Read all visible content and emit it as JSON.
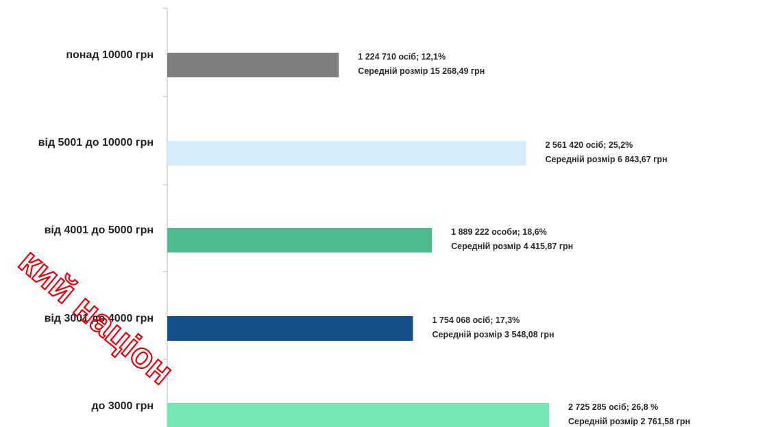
{
  "chart_data": {
    "type": "bar",
    "orientation": "horizontal",
    "categories": [
      "понад 10000 грн",
      "від 5001 до 10000 грн",
      "від 4001 до 5000 грн",
      "від 3001 до 4000 грн",
      "до 3000 грн"
    ],
    "values": [
      1224710,
      2561420,
      1889222,
      1754068,
      2725285
    ],
    "bar_colors": [
      "#7f7f7f",
      "#d6ecfa",
      "#4fba8e",
      "#164f8a",
      "#74e8b2"
    ],
    "data_labels": [
      {
        "line1": "1 224 710 осіб;  12,1%",
        "line2": "Середній розмір 15 268,49 грн"
      },
      {
        "line1": "2 561 420 осіб; 25,2%",
        "line2": "Середній розмір 6 843,67 грн"
      },
      {
        "line1": "1 889 222 особи; 18,6%",
        "line2": "Середній розмір 4 415,87 грн"
      },
      {
        "line1": "1 754 068 осіб; 17,3%",
        "line2": "Середній розмір 3 548,08 грн"
      },
      {
        "line1": "2 725 285 осіб; 26,8 %",
        "line2": "Середній розмір 2 761,58 грн"
      }
    ],
    "title": "",
    "xlabel": "",
    "ylabel": "",
    "xlim": [
      0,
      2725285
    ],
    "grid": false,
    "legend": "none"
  },
  "watermark": {
    "text": "кий націон",
    "color": "#e8000b"
  }
}
